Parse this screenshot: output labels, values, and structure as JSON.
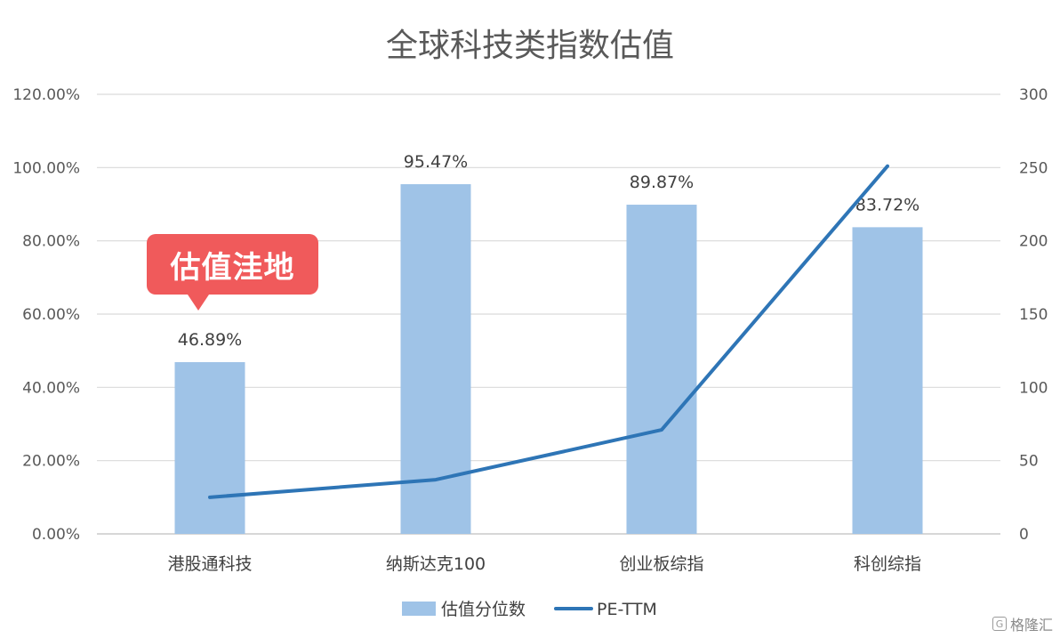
{
  "chart_data": {
    "type": "bar",
    "title": "全球科技类指数估值",
    "categories": [
      "港股通科技",
      "纳斯达克100",
      "创业板综指",
      "科创综指"
    ],
    "series": [
      {
        "name": "估值分位数",
        "type": "bar",
        "axis": "left",
        "values": [
          46.89,
          95.47,
          89.87,
          83.72
        ],
        "data_labels": [
          "46.89%",
          "95.47%",
          "89.87%",
          "83.72%"
        ],
        "color": "#9fc3e7"
      },
      {
        "name": "PE-TTM",
        "type": "line",
        "axis": "right",
        "values": [
          25,
          37,
          71,
          251
        ],
        "color": "#2e75b6"
      }
    ],
    "y_left": {
      "ylim": [
        0,
        120
      ],
      "ticks": [
        0,
        20,
        40,
        60,
        80,
        100,
        120
      ],
      "tick_labels": [
        "0.00%",
        "20.00%",
        "40.00%",
        "60.00%",
        "80.00%",
        "100.00%",
        "120.00%"
      ]
    },
    "y_right": {
      "ylim": [
        0,
        300
      ],
      "ticks": [
        0,
        50,
        100,
        150,
        200,
        250,
        300
      ],
      "tick_labels": [
        "0",
        "50",
        "100",
        "150",
        "200",
        "250",
        "300"
      ]
    },
    "grid": true,
    "legend": "bottom",
    "annotation": {
      "text": "估值洼地",
      "target": "港股通科技",
      "color": "#f05a5b"
    }
  },
  "watermark": {
    "text": "格隆汇",
    "icon": "g-logo-icon"
  }
}
